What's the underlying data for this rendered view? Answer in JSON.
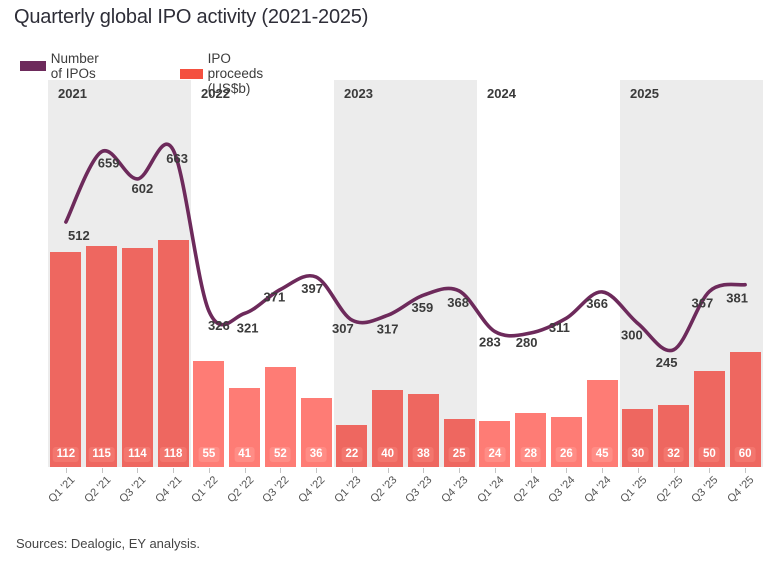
{
  "title": "Quarterly global IPO activity (2021-2025)",
  "legend": {
    "ipos": {
      "label": "Number of IPOs",
      "color": "#6d2a5b"
    },
    "proceeds": {
      "label": "IPO proceeds (US$b)",
      "color": "#f4503f"
    }
  },
  "source": "Sources: Dealogic, EY analysis.",
  "chart_data": {
    "type": "combo",
    "title": "Quarterly global IPO activity (2021-2025)",
    "categories": [
      "Q1 '21",
      "Q2 '21",
      "Q3 '21",
      "Q4 '21",
      "Q1 '22",
      "Q2 '22",
      "Q3 '22",
      "Q4 '22",
      "Q1 '23",
      "Q2 '23",
      "Q3 '23",
      "Q4 '23",
      "Q1 '24",
      "Q2 '24",
      "Q3 '24",
      "Q4 '24",
      "Q1 '25",
      "Q2 '25",
      "Q3 '25",
      "Q4 '25"
    ],
    "series": [
      {
        "name": "Number of IPOs",
        "type": "line",
        "color": "#6d2a5b",
        "values": [
          512,
          659,
          602,
          663,
          326,
          321,
          371,
          397,
          307,
          317,
          359,
          368,
          283,
          280,
          311,
          366,
          300,
          245,
          367,
          381
        ]
      },
      {
        "name": "IPO proceeds (US$b)",
        "type": "bar",
        "color": "#f4503f",
        "values": [
          112,
          115,
          114,
          118,
          55,
          41,
          52,
          36,
          22,
          40,
          38,
          25,
          24,
          28,
          26,
          45,
          30,
          32,
          50,
          60
        ]
      }
    ],
    "year_bands": [
      {
        "year": "2021",
        "shaded": true
      },
      {
        "year": "2022",
        "shaded": false
      },
      {
        "year": "2023",
        "shaded": true
      },
      {
        "year": "2024",
        "shaded": false
      },
      {
        "year": "2025",
        "shaded": true
      }
    ],
    "band_color": "#ececec",
    "bar_fill_on_shaded": "#ee6760",
    "bar_fill_on_white": "#fe7c75",
    "badge_fill_on_shaded": "#f3766e",
    "badge_fill_on_white": "#ff8d86",
    "value_label_color": "#3b3b3b",
    "legend_position": "top-left",
    "grid": false
  }
}
